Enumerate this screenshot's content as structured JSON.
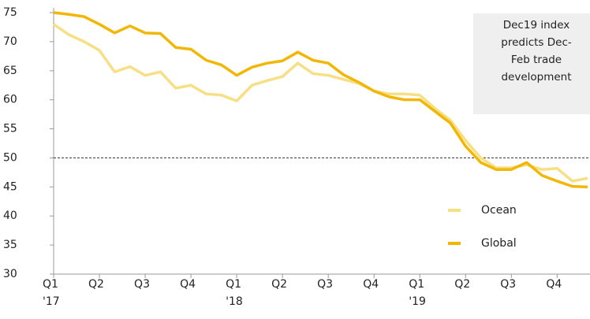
{
  "chart_data": {
    "type": "line",
    "annotation": "Dec19 index\npredicts Dec-\nFeb trade\ndevelopment",
    "categories": [
      "Q1\n'17",
      null,
      null,
      "Q2",
      null,
      null,
      "Q3",
      null,
      null,
      "Q4",
      null,
      null,
      "Q1\n'18",
      null,
      null,
      "Q2",
      null,
      null,
      "Q3",
      null,
      null,
      "Q4",
      null,
      null,
      "Q1\n'19",
      null,
      null,
      "Q2",
      null,
      null,
      "Q3",
      null,
      null,
      "Q4",
      null,
      null
    ],
    "series": [
      {
        "name": "Ocean",
        "color": "#f7df86",
        "values": [
          73,
          71.2,
          70,
          68.5,
          64.8,
          65.7,
          64.2,
          64.8,
          62,
          62.5,
          61,
          60.8,
          59.8,
          62.5,
          63.3,
          64,
          66.3,
          64.5,
          64.2,
          63.5,
          62.8,
          61.5,
          61,
          61,
          60.8,
          58.5,
          56.5,
          53,
          50,
          48.3,
          48.3,
          48.8,
          48,
          48.2,
          46,
          46.5
        ]
      },
      {
        "name": "Global",
        "color": "#f2b705",
        "values": [
          75,
          74.7,
          74.3,
          73,
          71.5,
          72.7,
          71.5,
          71.4,
          69,
          68.7,
          66.8,
          66,
          64.2,
          65.6,
          66.3,
          66.7,
          68.2,
          66.8,
          66.3,
          64.3,
          63,
          61.5,
          60.5,
          60,
          60,
          58,
          56,
          52,
          49.2,
          48,
          48,
          49.2,
          47,
          46,
          45.1,
          45
        ]
      }
    ],
    "reference_line": 50,
    "ylim": [
      30,
      75
    ],
    "yticks": [
      30,
      35,
      40,
      45,
      50,
      55,
      60,
      65,
      70,
      75
    ],
    "legend": "lower right"
  }
}
